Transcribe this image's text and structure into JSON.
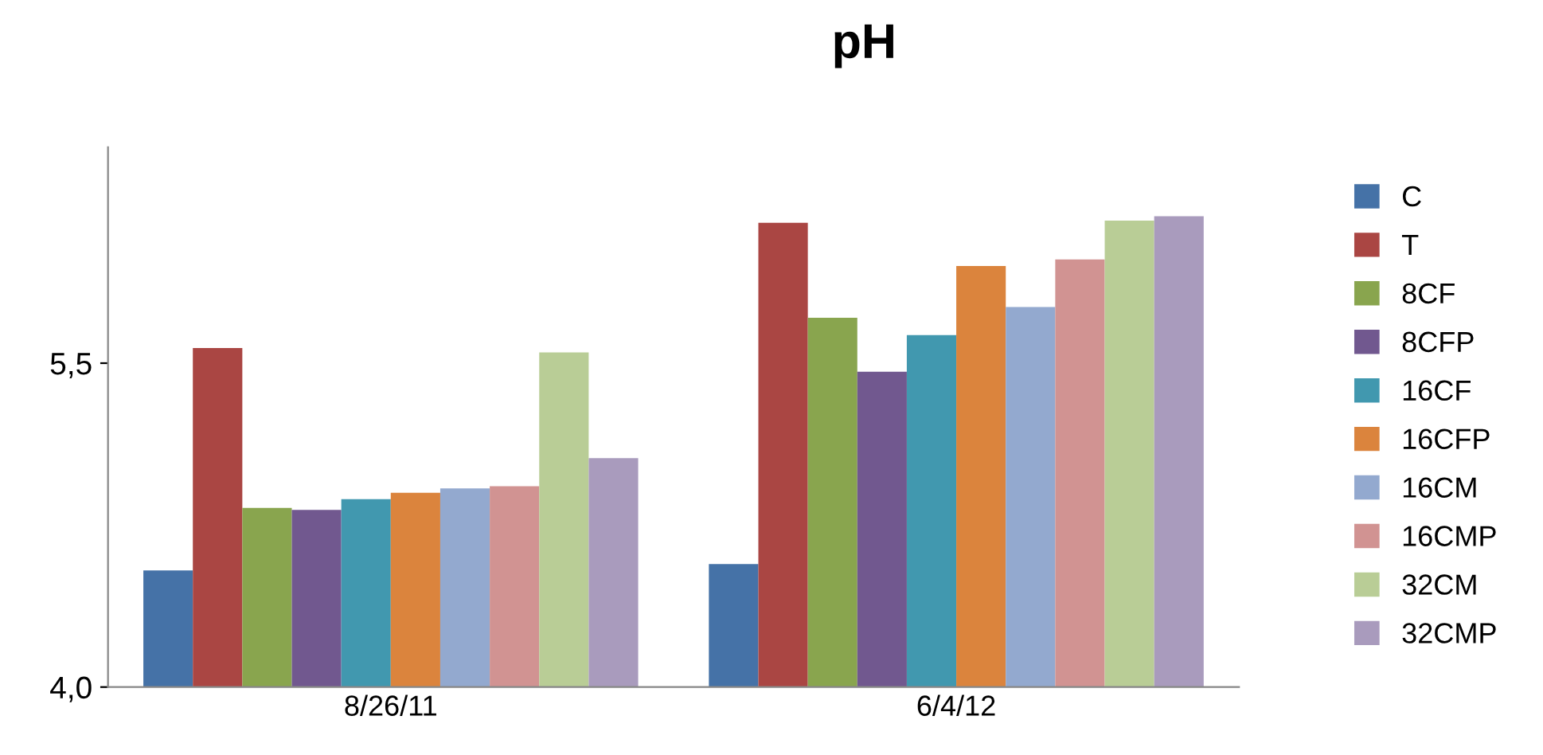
{
  "chart_data": {
    "type": "bar",
    "title": "pH",
    "categories": [
      "8/26/11",
      "6/4/12"
    ],
    "series": [
      {
        "name": "C",
        "color": "#4572a7",
        "values": [
          4.54,
          4.57
        ]
      },
      {
        "name": "T",
        "color": "#aa4643",
        "values": [
          5.57,
          6.15
        ]
      },
      {
        "name": "8CF",
        "color": "#89a54e",
        "values": [
          4.83,
          5.71
        ]
      },
      {
        "name": "8CFP",
        "color": "#71588f",
        "values": [
          4.82,
          5.46
        ]
      },
      {
        "name": "16CF",
        "color": "#4198af",
        "values": [
          4.87,
          5.63
        ]
      },
      {
        "name": "16CFP",
        "color": "#db843d",
        "values": [
          4.9,
          5.95
        ]
      },
      {
        "name": "16CM",
        "color": "#93a9cf",
        "values": [
          4.92,
          5.76
        ]
      },
      {
        "name": "16CMP",
        "color": "#d19392",
        "values": [
          4.93,
          5.98
        ]
      },
      {
        "name": "32CM",
        "color": "#b9cd96",
        "values": [
          5.55,
          6.16
        ]
      },
      {
        "name": "32CMP",
        "color": "#a99bbd",
        "values": [
          5.06,
          6.18
        ]
      }
    ],
    "ylim": [
      4.0,
      6.5
    ],
    "yticks": [
      {
        "value": 4.0,
        "label": "4,0"
      },
      {
        "value": 5.5,
        "label": "5,5"
      }
    ],
    "grid": false,
    "legend": "right"
  }
}
